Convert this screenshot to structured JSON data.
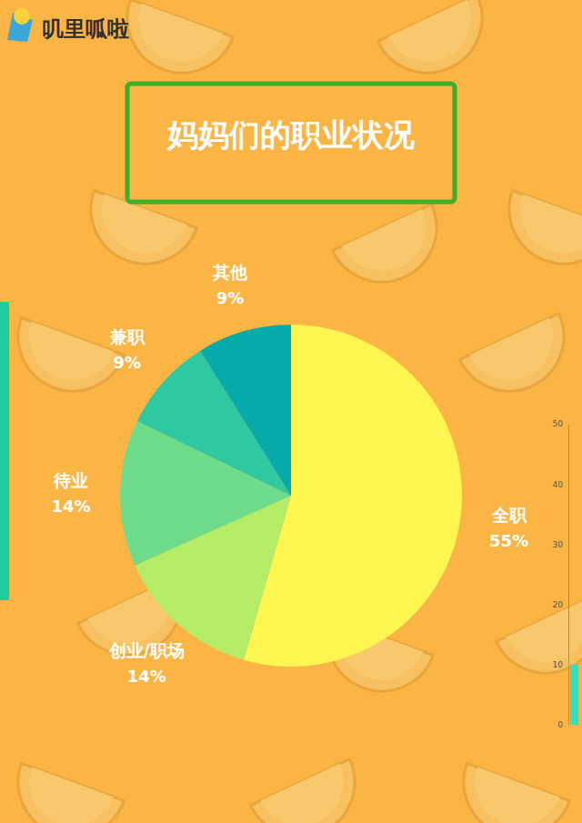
{
  "brand": "叽里呱啦",
  "chart_data": [
    {
      "type": "pie",
      "title": "妈妈们的职业状况",
      "categories": [
        "全职",
        "创业/职场",
        "待业",
        "兼职",
        "其他"
      ],
      "values": [
        55,
        14,
        14,
        9,
        9
      ],
      "value_labels": [
        "55%",
        "14%",
        "14%",
        "9%",
        "9%"
      ],
      "colors": [
        "#fdf650",
        "#b5ec68",
        "#6fdc8c",
        "#2ec9a3",
        "#06aaa9"
      ],
      "data_labels": true
    },
    {
      "type": "bar",
      "categories": [
        null
      ],
      "values": [
        10
      ],
      "color": "#2de0c8",
      "ylim": [
        0,
        50
      ],
      "yticks": [
        0,
        10,
        20,
        30,
        40,
        50
      ]
    }
  ]
}
